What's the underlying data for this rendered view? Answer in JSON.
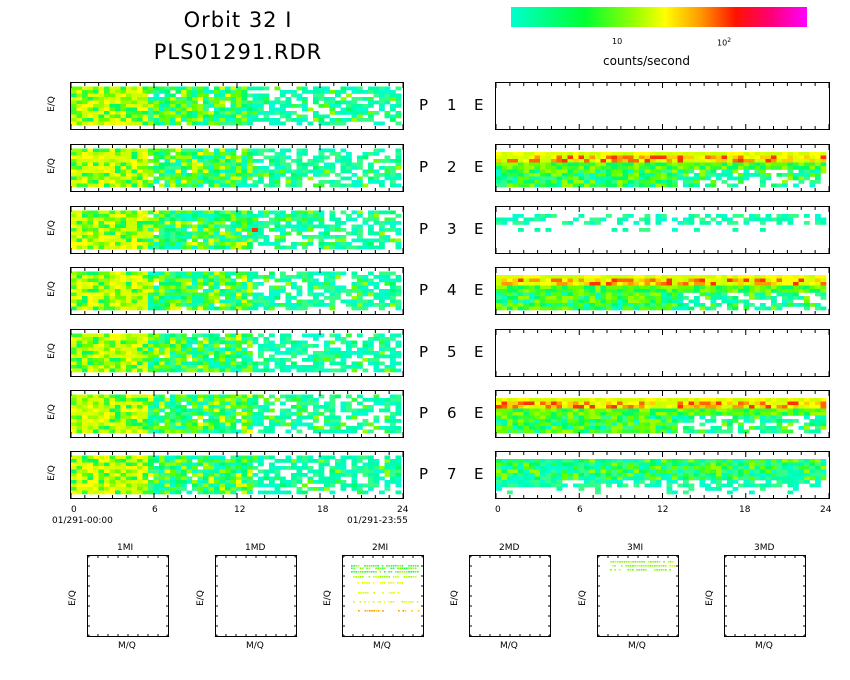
{
  "header": {
    "title_line1": "Orbit 32 I",
    "title_line2": "PLS01291.RDR"
  },
  "colorbar": {
    "tick1": "10",
    "tick2_base": "10",
    "tick2_exp": "2",
    "label": "counts/second",
    "colors": [
      "#00ffcc",
      "#00ff66",
      "#66ff00",
      "#ccff00",
      "#ffff00",
      "#ffcc00",
      "#ff8800",
      "#ff3300",
      "#ff0033",
      "#ff0099",
      "#ff00ff"
    ]
  },
  "axis": {
    "ylabel": "E/Q",
    "xticks": [
      "0",
      "6",
      "12",
      "18",
      "24"
    ],
    "start_date": "01/291-00:00",
    "end_date": "01/291-23:55"
  },
  "rows": [
    {
      "p": "P",
      "n": "1",
      "e": "E"
    },
    {
      "p": "P",
      "n": "2",
      "e": "E"
    },
    {
      "p": "P",
      "n": "3",
      "e": "E"
    },
    {
      "p": "P",
      "n": "4",
      "e": "E"
    },
    {
      "p": "P",
      "n": "5",
      "e": "E"
    },
    {
      "p": "P",
      "n": "6",
      "e": "E"
    },
    {
      "p": "P",
      "n": "7",
      "e": "E"
    }
  ],
  "mass_panels": {
    "titles": [
      "1MI",
      "1MD",
      "2MI",
      "2MD",
      "3MI",
      "3MD"
    ],
    "ylabel": "E/Q",
    "xlabel": "M/Q"
  },
  "chart_data": {
    "type": "heatmap",
    "xlabel": "",
    "ylabel": "E/Q",
    "x_range": [
      0,
      24
    ],
    "x_ticks": [
      0,
      6,
      12,
      18,
      24
    ],
    "colorbar_label": "counts/second",
    "colorbar_scale": "log",
    "colorbar_ticks": [
      "10",
      "10^2"
    ],
    "panels": {
      "ion_left": [
        "P1",
        "P2",
        "P3",
        "P4",
        "P5",
        "P6",
        "P7"
      ],
      "electron_right": [
        "E1",
        "E2",
        "E3",
        "E4",
        "E5",
        "E6",
        "E7"
      ],
      "electron_empty": [
        "E1",
        "E5"
      ],
      "mass": [
        "1MI",
        "1MD",
        "2MI",
        "2MD",
        "3MI",
        "3MD"
      ]
    }
  }
}
